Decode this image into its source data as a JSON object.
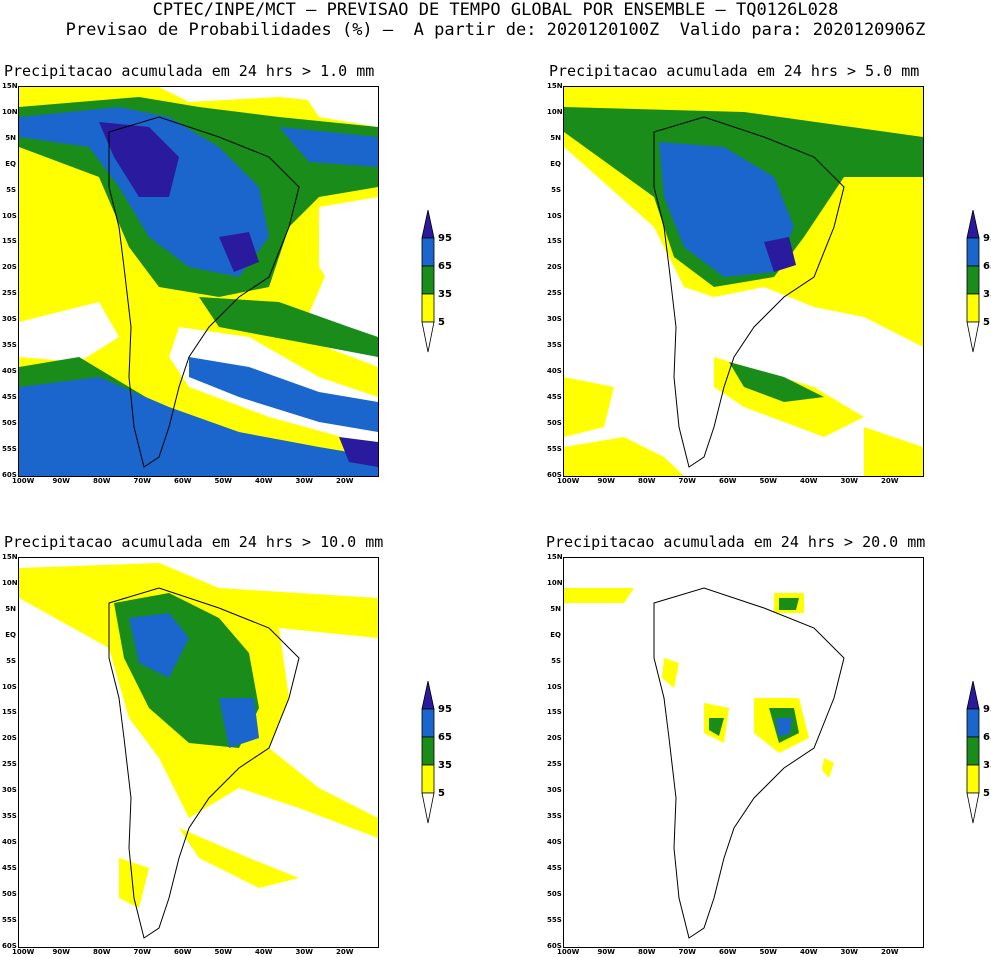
{
  "header": {
    "line1": "CPTEC/INPE/MCT – PREVISAO DE TEMPO GLOBAL POR ENSEMBLE – TQ0126L028",
    "line2": "Previsao de Probabilidades (%) –  A partir de: 2020120100Z  Valido para: 2020120906Z"
  },
  "panels": [
    {
      "title": "Precipitacao acumulada em 24 hrs > 1.0 mm",
      "threshold_mm": 1.0
    },
    {
      "title": "Precipitacao acumulada em 24 hrs > 5.0 mm",
      "threshold_mm": 5.0
    },
    {
      "title": "Precipitacao acumulada em 24 hrs > 10.0 mm",
      "threshold_mm": 10.0
    },
    {
      "title": "Precipitacao acumulada em 24 hrs > 20.0 mm",
      "threshold_mm": 20.0
    }
  ],
  "lat_labels": [
    "15N",
    "10N",
    "5N",
    "EQ",
    "5S",
    "10S",
    "15S",
    "20S",
    "25S",
    "30S",
    "35S",
    "40S",
    "45S",
    "50S",
    "55S",
    "60S"
  ],
  "lon_labels": [
    "100W",
    "90W",
    "80W",
    "70W",
    "60W",
    "50W",
    "40W",
    "30W",
    "20W"
  ],
  "colorbar": {
    "labels": [
      "95",
      "65",
      "35",
      "5"
    ],
    "colors": {
      "95_plus": "#2a1a9e",
      "65_95": "#1a66cc",
      "35_65": "#1a8c1a",
      "5_35": "#ffff00",
      "below_5": "#ffffff"
    }
  }
}
